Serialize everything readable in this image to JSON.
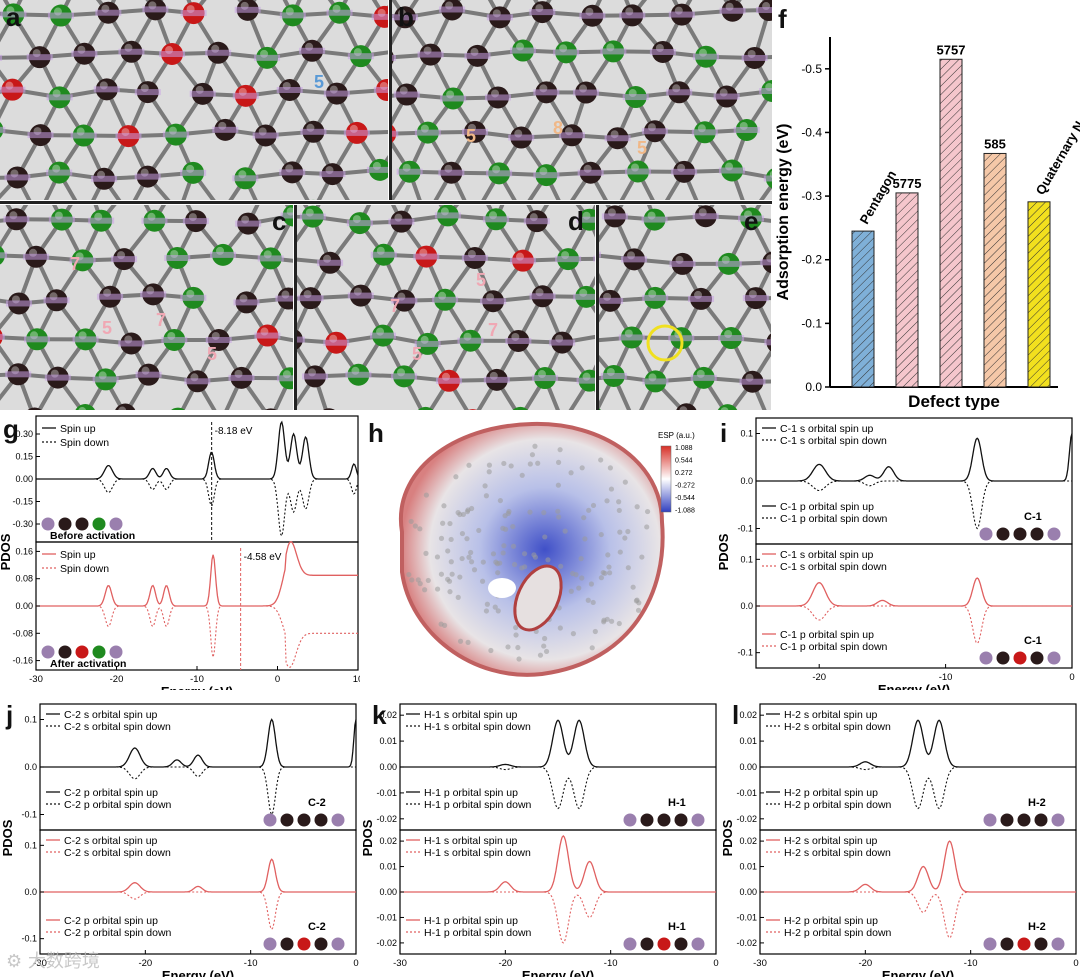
{
  "panels": {
    "a": "a",
    "b": "b",
    "c": "c",
    "d": "d",
    "e": "e",
    "f": "f",
    "g": "g",
    "h": "h",
    "i": "i",
    "j": "j",
    "k": "k",
    "l": "l"
  },
  "rings": {
    "a_5": "5",
    "b_5a": "5",
    "b_8": "8",
    "b_5b": "5",
    "c_7a": "7",
    "c_7b": "7",
    "c_5a": "5",
    "c_5b": "5",
    "d_7a": "7",
    "d_5a": "5",
    "d_7b": "7",
    "d_5b": "5"
  },
  "colors": {
    "carbon": "#2a1a1a",
    "green": "#1f8a1f",
    "red": "#c81818",
    "bond": "#7a7a7a",
    "bg_mol": "#dcdcdc",
    "pdos_black": "#111111",
    "pdos_red": "#e06060",
    "esp_red": "#d73027",
    "esp_blue": "#3040c0"
  },
  "chart_data": [
    {
      "id": "f",
      "type": "bar",
      "categories": [
        "Pentagon",
        "5775",
        "5757",
        "585",
        "Quaternary N"
      ],
      "values": [
        -0.245,
        -0.305,
        -0.515,
        -0.367,
        -0.291
      ],
      "bar_labels": [
        "Pentagon",
        "5775",
        "5757",
        "585",
        "Quaternary N"
      ],
      "bar_colors": [
        "#7fb0d8",
        "#f5c6cc",
        "#f5c6cc",
        "#f5c8a8",
        "#f2e01e"
      ],
      "xlabel": "Defect type",
      "ylabel": "Adsorption energy (eV)",
      "ylim": [
        0,
        -0.55
      ],
      "yticks": [
        "0.0",
        "-0.1",
        "-0.2",
        "-0.3",
        "-0.4",
        "-0.5"
      ],
      "grid": false
    },
    {
      "id": "g",
      "type": "line",
      "xlabel": "Energy (eV)",
      "ylabel": "PDOS",
      "xticks": [
        "-30",
        "-20",
        "-10",
        "0",
        "10"
      ],
      "top": {
        "series": [
          "Spin up",
          "Spin down"
        ],
        "yticks": [
          "0.30",
          "0.15",
          "0.00",
          "-0.15",
          "-0.30"
        ],
        "annotation": "-8.18 eV",
        "caption": "Before activation"
      },
      "bottom": {
        "series": [
          "Spin up",
          "Spin down"
        ],
        "yticks": [
          "0.16",
          "0.08",
          "0.00",
          "-0.08",
          "-0.16"
        ],
        "annotation": "-4.58 eV",
        "caption": "After activation"
      }
    },
    {
      "id": "h",
      "type": "heatmap",
      "colorbar_title": "ESP (a.u.)",
      "colorbar_ticks": [
        "1.088",
        "0.544",
        "0.272",
        "-0.272",
        "-0.544",
        "-1.088"
      ]
    },
    {
      "id": "i",
      "type": "line",
      "xlabel": "Energy (eV)",
      "ylabel": "PDOS",
      "xticks": [
        "-20",
        "-10",
        "0"
      ],
      "top": {
        "series": [
          "C-1 s orbital spin up",
          "C-1 s orbital spin down",
          "C-1 p orbital spin up",
          "C-1 p orbital spin down"
        ],
        "yticks": [
          "0.1",
          "0.0",
          "-0.1"
        ],
        "atom": "C-1"
      },
      "bottom": {
        "series": [
          "C-1 s orbital spin up",
          "C-1 s orbital spin down",
          "C-1 p orbital spin up",
          "C-1 p orbital spin down"
        ],
        "yticks": [
          "0.1",
          "0.0",
          "-0.1"
        ],
        "atom": "C-1"
      }
    },
    {
      "id": "j",
      "type": "line",
      "xlabel": "Energy (eV)",
      "ylabel": "PDOS",
      "xticks": [
        "-30",
        "-20",
        "-10",
        "0"
      ],
      "top": {
        "series": [
          "C-2 s orbital spin up",
          "C-2 s orbital spin down",
          "C-2 p orbital spin up",
          "C-2 p orbital spin down"
        ],
        "yticks": [
          "0.1",
          "0.0",
          "-0.1"
        ],
        "atom": "C-2"
      },
      "bottom": {
        "series": [
          "C-2 s orbital spin up",
          "C-2 s orbital spin down",
          "C-2 p orbital spin up",
          "C-2 p orbital spin down"
        ],
        "yticks": [
          "0.1",
          "0.0",
          "-0.1"
        ],
        "atom": "C-2"
      }
    },
    {
      "id": "k",
      "type": "line",
      "xlabel": "Energy (eV)",
      "ylabel": "PDOS",
      "xticks": [
        "-30",
        "-20",
        "-10",
        "0"
      ],
      "top": {
        "series": [
          "H-1 s orbital spin up",
          "H-1 s orbital spin down",
          "H-1 p orbital spin up",
          "H-1 p orbital spin down"
        ],
        "yticks": [
          "0.02",
          "0.01",
          "0.00",
          "-0.01",
          "-0.02"
        ],
        "atom": "H-1"
      },
      "bottom": {
        "series": [
          "H-1 s orbital spin up",
          "H-1 s orbital spin down",
          "H-1 p orbital spin up",
          "H-1 p orbital spin down"
        ],
        "yticks": [
          "0.02",
          "0.01",
          "0.00",
          "-0.01",
          "-0.02"
        ],
        "atom": "H-1"
      }
    },
    {
      "id": "l",
      "type": "line",
      "xlabel": "Energy (eV)",
      "ylabel": "PDOS",
      "xticks": [
        "-30",
        "-20",
        "-10",
        "0"
      ],
      "top": {
        "series": [
          "H-2 s orbital spin up",
          "H-2 s orbital spin down",
          "H-2 p orbital spin up",
          "H-2 p orbital spin down"
        ],
        "yticks": [
          "0.02",
          "0.01",
          "0.00",
          "-0.01",
          "-0.02"
        ],
        "atom": "H-2"
      },
      "bottom": {
        "series": [
          "H-2 s orbital spin up",
          "H-2 s orbital spin down",
          "H-2 p orbital spin up",
          "H-2 p orbital spin down"
        ],
        "yticks": [
          "0.02",
          "0.01",
          "0.00",
          "-0.01",
          "-0.02"
        ],
        "atom": "H-2"
      }
    }
  ],
  "watermark": "大数跨境"
}
